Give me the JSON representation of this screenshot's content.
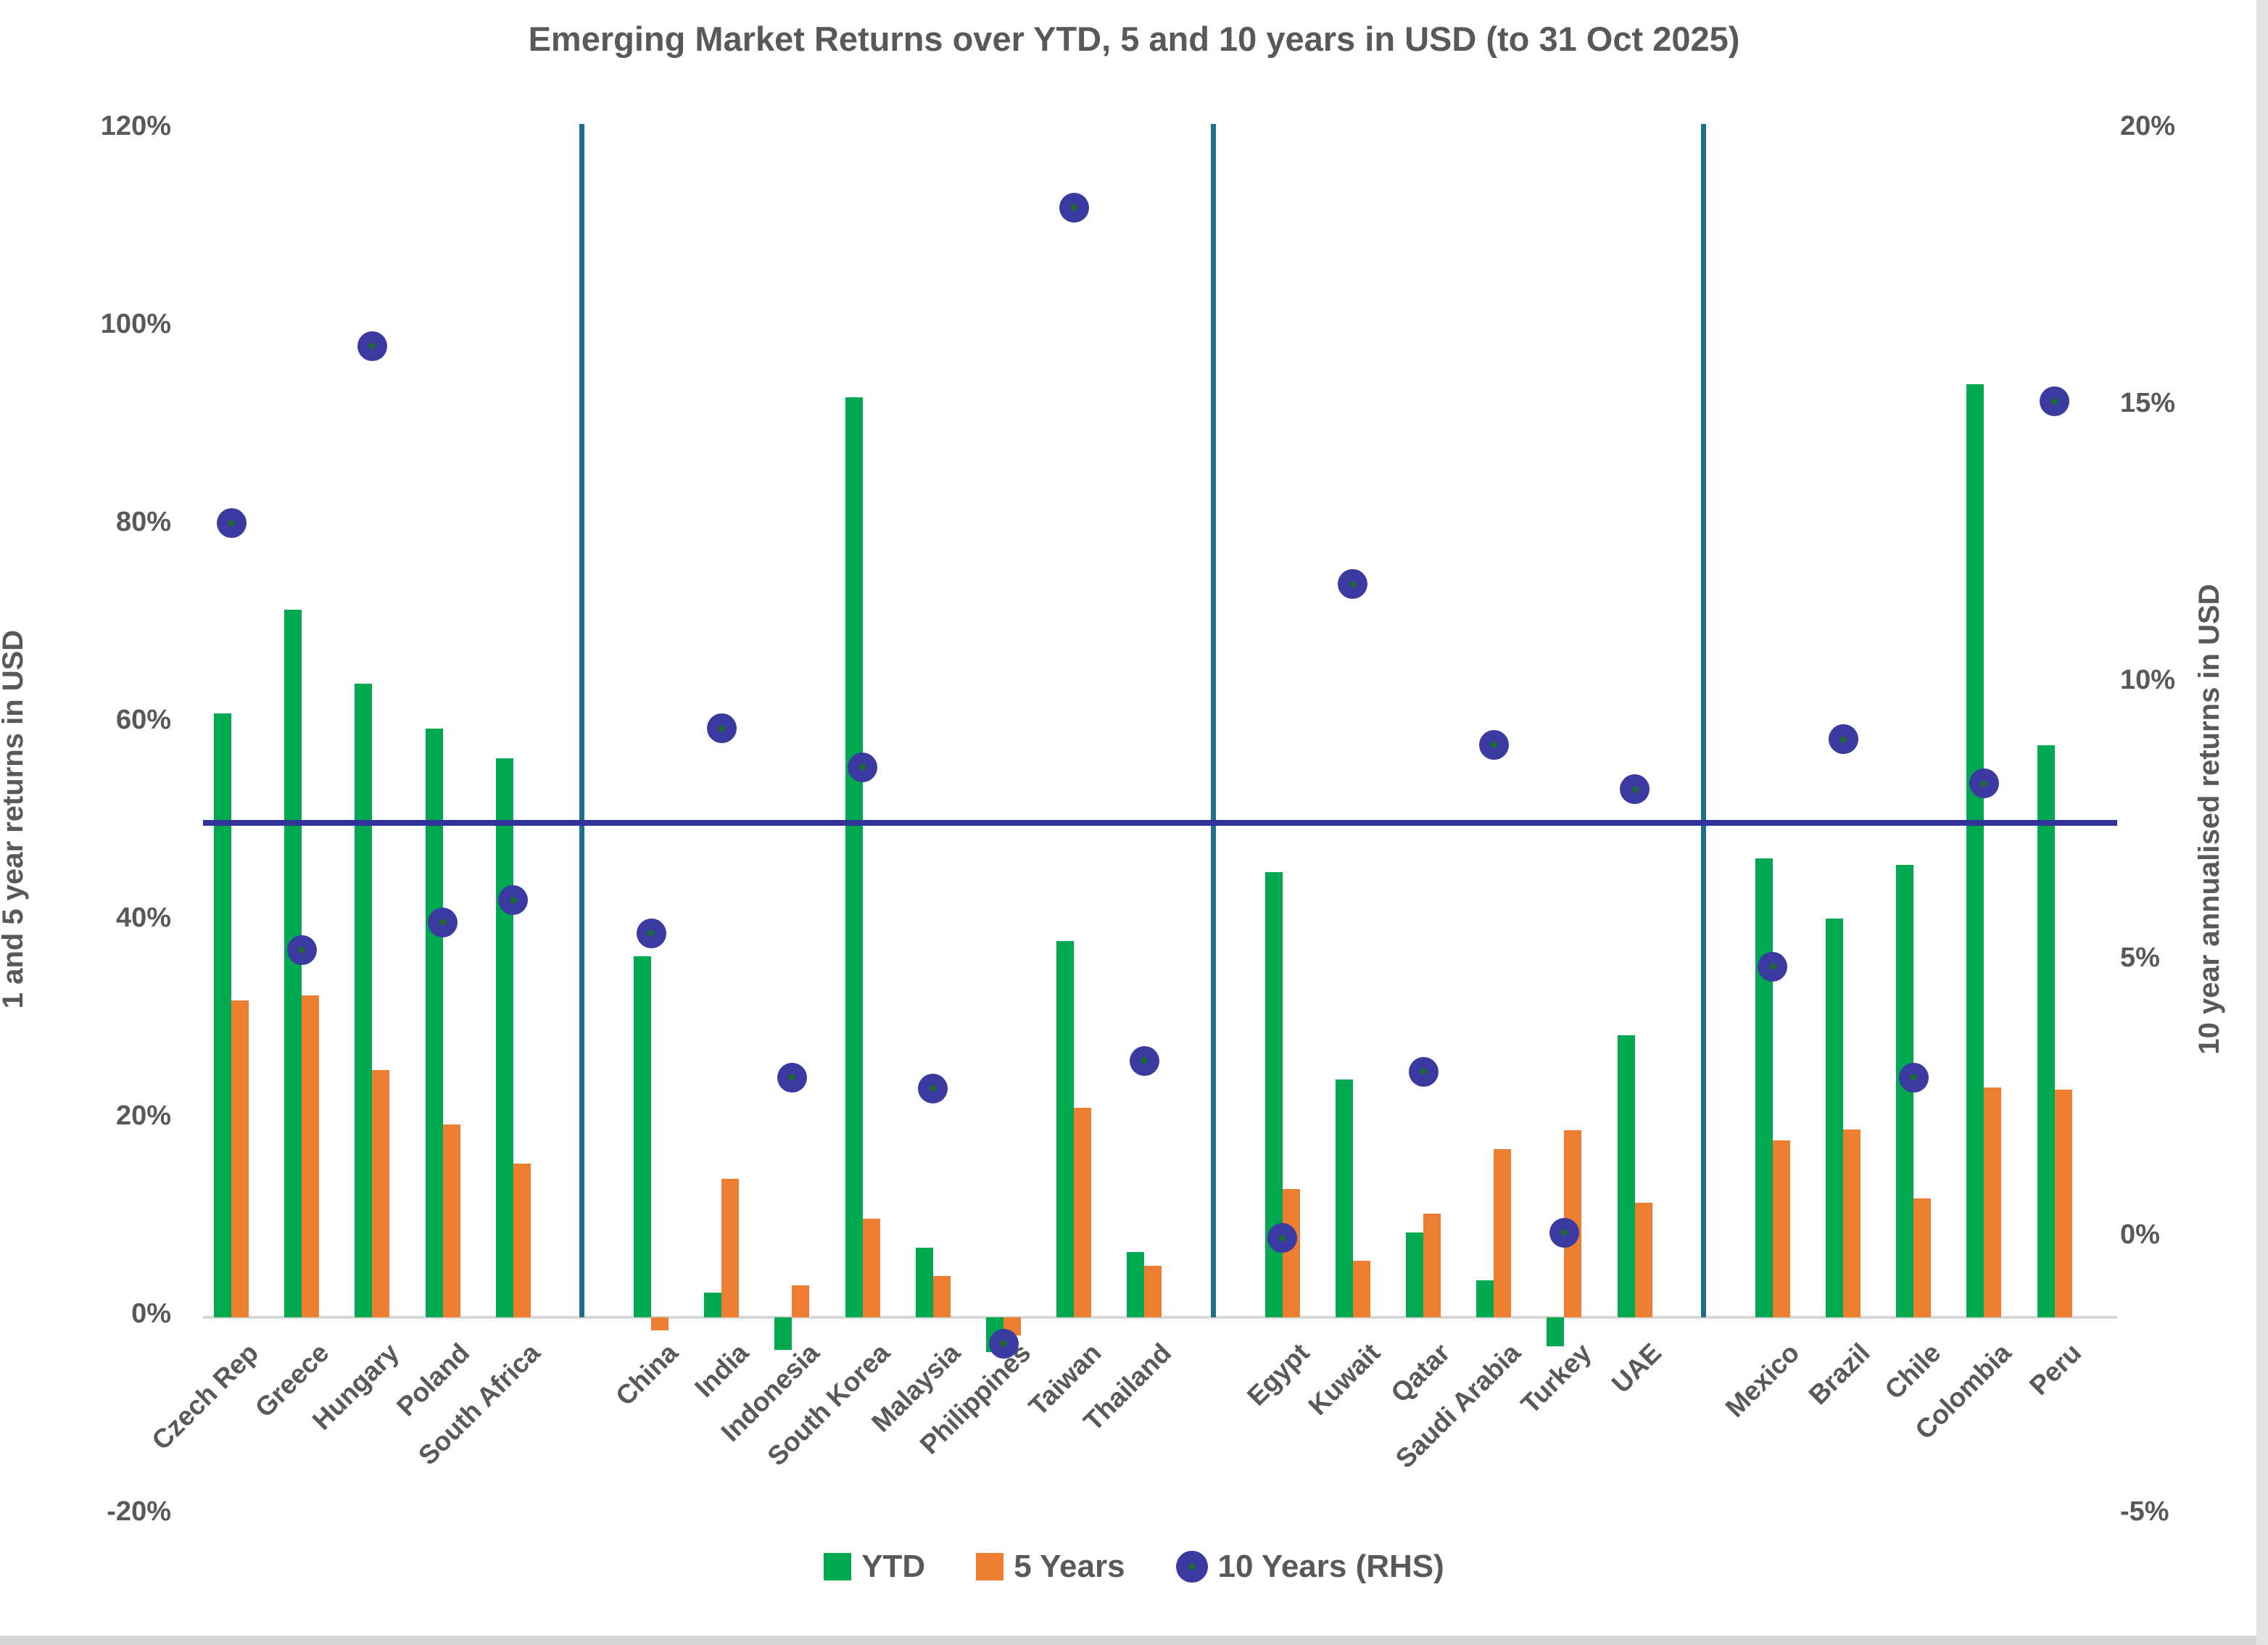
{
  "title": "Emerging Market Returns over YTD, 5 and 10 years in USD (to 31 Oct 2025)",
  "colors": {
    "ytd": "#00A850",
    "five_years": "#ED7D31",
    "ten_years": "#3A3AA0",
    "reference_line": "#32329B",
    "divider": "#1F6E8C",
    "axis_text": "#595959",
    "baseline": "#D9D9D9"
  },
  "legend": [
    {
      "label": "YTD",
      "swatch": "square",
      "color": "#00A850"
    },
    {
      "label": "5 Years",
      "swatch": "square",
      "color": "#ED7D31"
    },
    {
      "label": "10 Years (RHS)",
      "swatch": "circle",
      "color": "#3A3AA0"
    }
  ],
  "chart_data": {
    "type": "bar",
    "subtype": "grouped bars with scatter overlay on secondary axis",
    "title": "Emerging Market Returns over YTD, 5 and 10 years in USD (to 31 Oct 2025)",
    "categories": [
      "Czech Rep",
      "Greece",
      "Hungary",
      "Poland",
      "South Africa",
      "China",
      "India",
      "Indonesia",
      "South Korea",
      "Malaysia",
      "Philippines",
      "Taiwan",
      "Thailand",
      "Egypt",
      "Kuwait",
      "Qatar",
      "Saudi Arabia",
      "Turkey",
      "UAE",
      "Mexico",
      "Brazil",
      "Chile",
      "Colombia",
      "Peru"
    ],
    "group_sizes": [
      5,
      8,
      6,
      5
    ],
    "series": [
      {
        "name": "YTD",
        "type": "bar",
        "axis": "left",
        "color": "#00A850",
        "values": [
          61,
          71.5,
          64,
          59.5,
          56.5,
          36.5,
          2.5,
          -3.3,
          93,
          7,
          -3.5,
          38,
          6.6,
          45,
          24,
          8.6,
          3.7,
          -2.9,
          28.5,
          46.4,
          40.3,
          45.7,
          94.3,
          57.8
        ]
      },
      {
        "name": "5 Years",
        "type": "bar",
        "axis": "left",
        "color": "#ED7D31",
        "values": [
          32,
          32.5,
          25,
          19.5,
          15.5,
          -1.3,
          14,
          3.2,
          10,
          4.2,
          -1.8,
          21.2,
          5.2,
          13,
          5.7,
          10.5,
          17,
          18.9,
          11.6,
          17.9,
          19,
          12,
          23.2,
          23
        ]
      },
      {
        "name": "10 Years (RHS)",
        "type": "scatter",
        "axis": "right",
        "color": "#3A3AA0",
        "values": [
          12.9,
          5.2,
          16.1,
          5.7,
          6.1,
          5.5,
          9.2,
          2.9,
          8.5,
          2.7,
          -1.9,
          18.6,
          3.2,
          0.0,
          11.8,
          3.0,
          8.9,
          0.1,
          8.1,
          4.9,
          9.0,
          2.9,
          8.2,
          15.1
        ]
      }
    ],
    "left_axis": {
      "title": "1 and 5 year returns in USD",
      "min": -20,
      "max": 120,
      "step": 20,
      "ticks": [
        {
          "label": "120%",
          "value": 120
        },
        {
          "label": "100%",
          "value": 100
        },
        {
          "label": "80%",
          "value": 80
        },
        {
          "label": "60%",
          "value": 60
        },
        {
          "label": "40%",
          "value": 40
        },
        {
          "label": "20%",
          "value": 20
        },
        {
          "label": "0%",
          "value": 0
        },
        {
          "label": "-20%",
          "value": -20
        }
      ]
    },
    "right_axis": {
      "title": "10 year annualised returns in USD",
      "min": -5,
      "max": 20,
      "step": 5,
      "ticks": [
        {
          "label": "20%",
          "value": 20
        },
        {
          "label": "15%",
          "value": 15
        },
        {
          "label": "10%",
          "value": 10
        },
        {
          "label": "5%",
          "value": 5
        },
        {
          "label": "0%",
          "value": 0
        },
        {
          "label": "-5%",
          "value": -5
        }
      ]
    },
    "reference_line": {
      "axis": "right",
      "value": 7.5,
      "color": "#32329B"
    },
    "region_dividers_after": [
      "South Africa",
      "Thailand",
      "UAE"
    ],
    "grid": "off",
    "legend_position": "bottom"
  }
}
